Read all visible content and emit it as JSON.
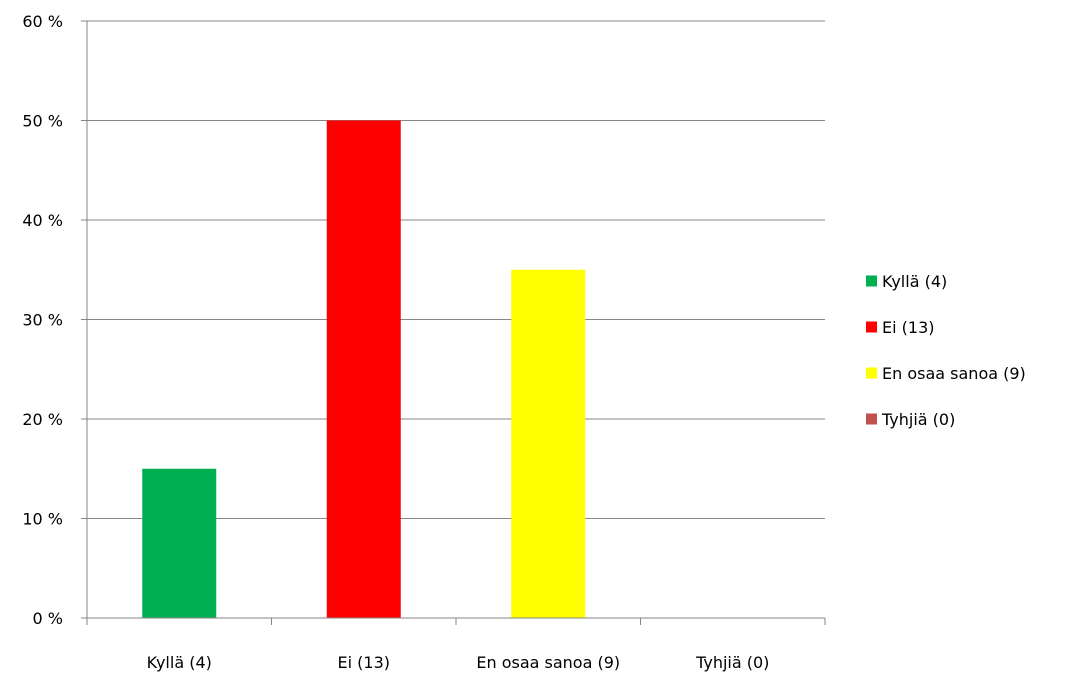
{
  "chart_data": {
    "type": "bar",
    "categories": [
      "Kyllä (4)",
      "Ei (13)",
      "En osaa sanoa (9)",
      "Tyhjiä (0)"
    ],
    "values": [
      15,
      50,
      35,
      0
    ],
    "colors": [
      "#00b050",
      "#ff0000",
      "#ffff00",
      "#c0504d"
    ],
    "ylim": [
      0,
      60
    ],
    "yticks": [
      0,
      10,
      20,
      30,
      40,
      50,
      60
    ],
    "ytick_labels": [
      "0 %",
      "10 %",
      "20 %",
      "30 %",
      "40 %",
      "50 %",
      "60 %"
    ],
    "grid": true,
    "legend": {
      "placement": "right",
      "entries": [
        "Kyllä (4)",
        "Ei (13)",
        "En osaa sanoa (9)",
        "Tyhjiä (0)"
      ]
    }
  }
}
